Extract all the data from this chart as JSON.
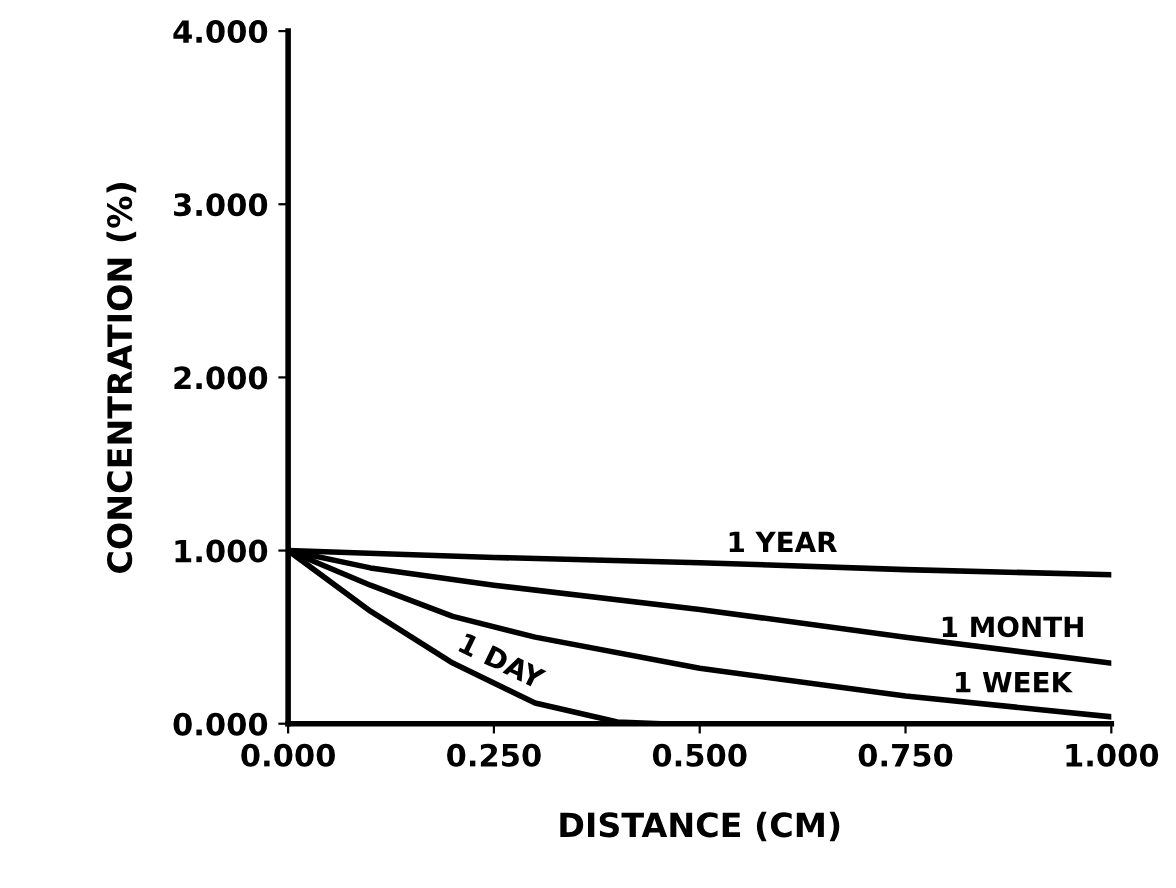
{
  "chart_data": {
    "type": "line",
    "xlabel": "DISTANCE (CM)",
    "ylabel": "CONCENTRATION (%)",
    "xlim": [
      0,
      1
    ],
    "ylim": [
      0,
      4
    ],
    "xticks": [
      {
        "value": 0,
        "label": "0.000"
      },
      {
        "value": 0.25,
        "label": "0.250"
      },
      {
        "value": 0.5,
        "label": "0.500"
      },
      {
        "value": 0.75,
        "label": "0.750"
      },
      {
        "value": 1,
        "label": "1.000"
      }
    ],
    "yticks": [
      {
        "value": 0,
        "label": "0.000"
      },
      {
        "value": 1,
        "label": "1.000"
      },
      {
        "value": 2,
        "label": "2.000"
      },
      {
        "value": 3,
        "label": "3.000"
      },
      {
        "value": 4,
        "label": "4.000"
      }
    ],
    "grid": false,
    "legend": false,
    "marker": "none",
    "line_style": "solid",
    "series": [
      {
        "color": "#000000",
        "x": [
          0,
          0.25,
          0.5,
          0.75,
          1.0
        ],
        "values": [
          1.0,
          0.96,
          0.93,
          0.89,
          0.86
        ]
      },
      {
        "color": "#000000",
        "x": [
          0,
          0.1,
          0.25,
          0.5,
          0.75,
          1.0
        ],
        "values": [
          1.0,
          0.9,
          0.8,
          0.66,
          0.5,
          0.35
        ]
      },
      {
        "color": "#000000",
        "x": [
          0,
          0.1,
          0.2,
          0.3,
          0.5,
          0.75,
          1.0
        ],
        "values": [
          1.0,
          0.8,
          0.62,
          0.5,
          0.32,
          0.16,
          0.04
        ]
      },
      {
        "color": "#000000",
        "x": [
          0,
          0.1,
          0.2,
          0.3,
          0.4,
          0.45
        ],
        "values": [
          1.0,
          0.65,
          0.35,
          0.12,
          0.01,
          0
        ]
      }
    ],
    "annotations": [
      {
        "text": "1 YEAR",
        "x": 0.6,
        "y": 0.91
      },
      {
        "text": "1 MONTH",
        "x": 0.88,
        "y": 0.42
      },
      {
        "text": "1 WEEK",
        "x": 0.88,
        "y": 0.1
      },
      {
        "text": "1 DAY",
        "x": 0.25,
        "y": 0.235
      }
    ]
  }
}
